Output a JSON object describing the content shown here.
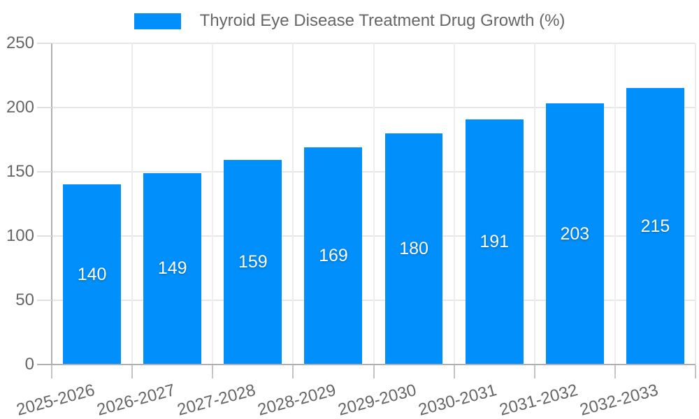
{
  "legend": {
    "label": "Thyroid Eye Disease Treatment Drug Growth (%)"
  },
  "chart_data": {
    "type": "bar",
    "title": "Thyroid Eye Disease Treatment Drug Growth (%)",
    "categories": [
      "2025-2026",
      "2026-2027",
      "2027-2028",
      "2028-2029",
      "2029-2030",
      "2030-2031",
      "2031-2032",
      "2032-2033"
    ],
    "values": [
      140,
      149,
      159,
      169,
      180,
      191,
      203,
      215
    ],
    "xlabel": "",
    "ylabel": "",
    "ylim": [
      0,
      250
    ],
    "yticks": [
      0,
      50,
      100,
      150,
      200,
      250
    ],
    "grid": true,
    "legend_position": "top",
    "colors": {
      "bar": "#008FFB",
      "bar_value_label": "#ffffff",
      "axis_text": "#666666",
      "axis_line": "#b0b0b0",
      "gridline": "#e7e7e7"
    }
  }
}
